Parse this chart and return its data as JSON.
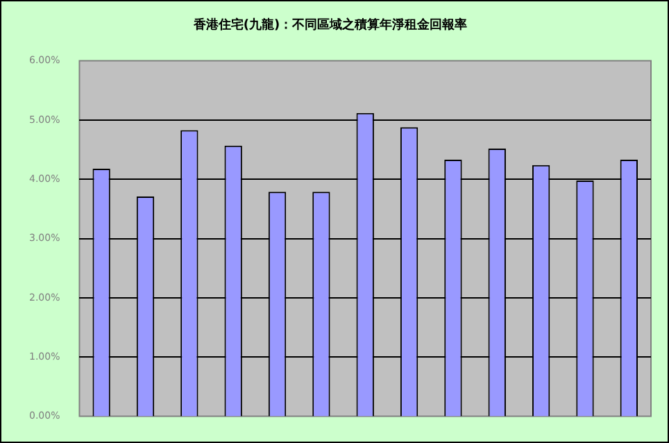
{
  "chart_data": {
    "type": "bar",
    "title": "香港住宅(九龍)：不同區域之積算年淨租金回報率",
    "categories": [
      null,
      null,
      null,
      null,
      null,
      null,
      null,
      null,
      null,
      null,
      null,
      null,
      null
    ],
    "values": [
      4.18,
      3.71,
      4.83,
      4.57,
      3.79,
      3.79,
      5.12,
      4.88,
      4.33,
      4.52,
      4.24,
      3.98,
      4.33
    ],
    "color": "#9999ff",
    "ylim": [
      0,
      6
    ],
    "yticks": [
      {
        "value": 0,
        "label": "0.00%"
      },
      {
        "value": 1,
        "label": "1.00%"
      },
      {
        "value": 2,
        "label": "2.00%"
      },
      {
        "value": 3,
        "label": "3.00%"
      },
      {
        "value": 4,
        "label": "4.00%"
      },
      {
        "value": 5,
        "label": "5.00%"
      },
      {
        "value": 6,
        "label": "6.00%"
      }
    ],
    "grid": "y",
    "legend": false
  }
}
